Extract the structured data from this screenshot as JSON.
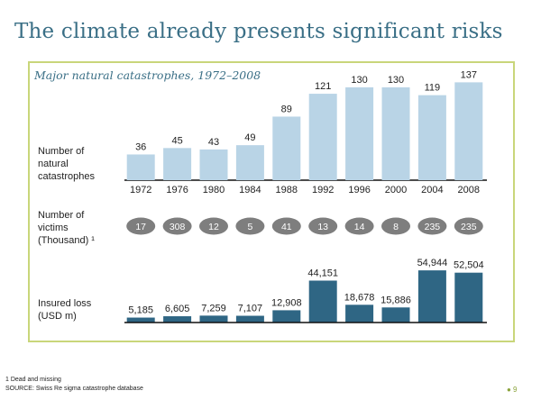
{
  "title": "The climate already presents significant risks",
  "panel_title": "Major natural catastrophes, 1972–2008",
  "row_labels": {
    "catastrophes": [
      "Number of",
      "natural",
      "catastrophes"
    ],
    "victims": [
      "Number of",
      "victims",
      "(Thousand) ¹"
    ],
    "insured": [
      "Insured loss",
      "(USD m)"
    ]
  },
  "colors": {
    "title": "#3a6f86",
    "catastrophe_bar": "#b9d4e6",
    "victims_oval": "#7e7e7e",
    "insured_bar": "#2f6684",
    "frame": "#c9d67a"
  },
  "chart_data": [
    {
      "type": "bar",
      "categories": [
        "1972",
        "1976",
        "1980",
        "1984",
        "1988",
        "1992",
        "1996",
        "2000",
        "2004",
        "2008"
      ],
      "values": [
        36,
        45,
        43,
        49,
        89,
        121,
        130,
        130,
        119,
        137
      ],
      "value_labels": [
        "36",
        "45",
        "43",
        "49",
        "89",
        "121",
        "130",
        "130",
        "119",
        "137"
      ],
      "ylim": [
        0,
        140
      ]
    },
    {
      "type": "table",
      "values": [
        17,
        308,
        12,
        5,
        41,
        13,
        14,
        8,
        235,
        235
      ],
      "value_labels": [
        "17",
        "308",
        "12",
        "5",
        "41",
        "13",
        "14",
        "8",
        "235",
        "235"
      ]
    },
    {
      "type": "bar",
      "values": [
        5185,
        6605,
        7259,
        7107,
        12908,
        44151,
        18678,
        15886,
        54944,
        52504
      ],
      "value_labels": [
        "5,185",
        "6,605",
        "7,259",
        "7,107",
        "12,908",
        "44,151",
        "18,678",
        "15,886",
        "54,944",
        "52,504"
      ],
      "ylim": [
        0,
        56000
      ]
    }
  ],
  "footnotes": {
    "note": "1 Dead and missing",
    "source": "SOURCE: Swiss Re sigma catastrophe database"
  },
  "page_marker": "● 9"
}
